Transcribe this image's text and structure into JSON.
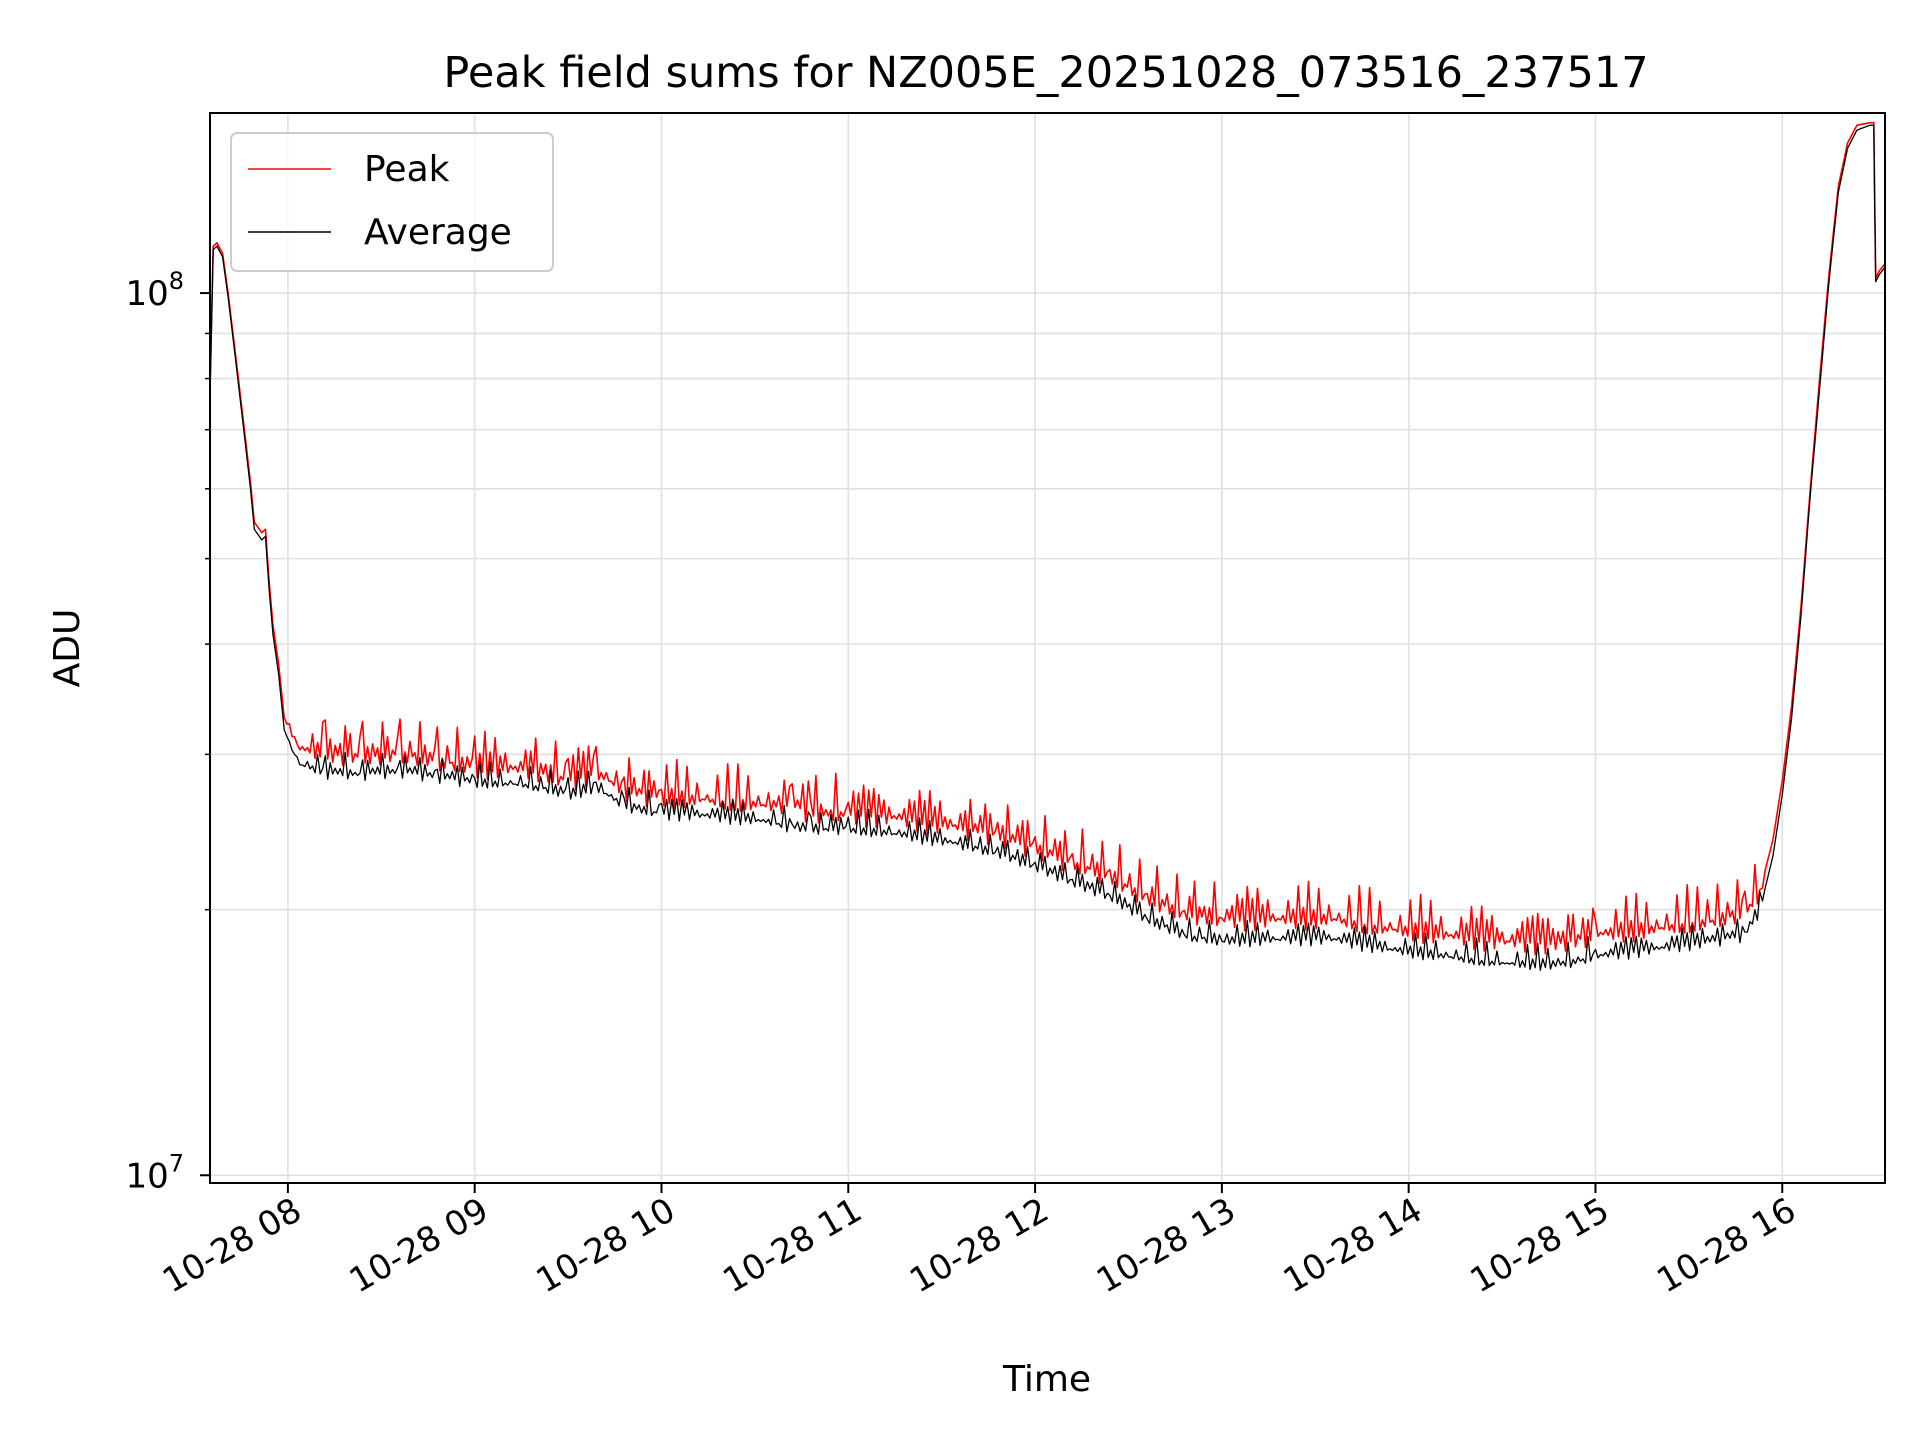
{
  "chart_data": {
    "type": "line",
    "title": "Peak field sums for NZ005E_20251028_073516_237517",
    "xlabel": "Time",
    "ylabel": "ADU",
    "yscale": "log",
    "ylim": [
      9800000,
      160000000
    ],
    "xlim_hours": [
      7.583,
      16.55
    ],
    "x_ticks": [
      {
        "hour": 8,
        "label": "10-28 08"
      },
      {
        "hour": 9,
        "label": "10-28 09"
      },
      {
        "hour": 10,
        "label": "10-28 10"
      },
      {
        "hour": 11,
        "label": "10-28 11"
      },
      {
        "hour": 12,
        "label": "10-28 12"
      },
      {
        "hour": 13,
        "label": "10-28 13"
      },
      {
        "hour": 14,
        "label": "10-28 14"
      },
      {
        "hour": 15,
        "label": "10-28 15"
      },
      {
        "hour": 16,
        "label": "10-28 16"
      }
    ],
    "y_ticks": [
      {
        "value": 10000000,
        "base": "10",
        "exp": "7"
      },
      {
        "value": 100000000,
        "base": "10",
        "exp": "8"
      }
    ],
    "y_minor_ticks": [
      20000000,
      30000000,
      40000000,
      50000000,
      60000000,
      70000000,
      80000000,
      90000000,
      200000000
    ],
    "grid": true,
    "legend_position": "top-left",
    "series": [
      {
        "name": "Peak",
        "color": "#ff0000",
        "points": [
          [
            7.583,
            78000000
          ],
          [
            7.6,
            113000000
          ],
          [
            7.62,
            114000000
          ],
          [
            7.65,
            111000000
          ],
          [
            7.68,
            100000000
          ],
          [
            7.72,
            85000000
          ],
          [
            7.76,
            72000000
          ],
          [
            7.8,
            61000000
          ],
          [
            7.82,
            55000000
          ],
          [
            7.86,
            53500000
          ],
          [
            7.88,
            54000000
          ],
          [
            7.9,
            47000000
          ],
          [
            7.92,
            42000000
          ],
          [
            7.95,
            38000000
          ],
          [
            7.98,
            33000000
          ],
          [
            8.05,
            30500000
          ],
          [
            8.2,
            30000000
          ],
          [
            8.4,
            29800000
          ],
          [
            8.6,
            30000000
          ],
          [
            8.8,
            29500000
          ],
          [
            9.0,
            29000000
          ],
          [
            9.3,
            28800000
          ],
          [
            9.5,
            28000000
          ],
          [
            9.65,
            28600000
          ],
          [
            9.8,
            27300000
          ],
          [
            10.0,
            26800000
          ],
          [
            10.3,
            26600000
          ],
          [
            10.6,
            26200000
          ],
          [
            10.7,
            26300000
          ],
          [
            10.8,
            25800000
          ],
          [
            11.0,
            25700000
          ],
          [
            11.3,
            25300000
          ],
          [
            11.6,
            24800000
          ],
          [
            11.8,
            24300000
          ],
          [
            12.0,
            23500000
          ],
          [
            12.2,
            22600000
          ],
          [
            12.4,
            21800000
          ],
          [
            12.6,
            20600000
          ],
          [
            12.8,
            19800000
          ],
          [
            13.0,
            19500000
          ],
          [
            13.3,
            19500000
          ],
          [
            13.6,
            19500000
          ],
          [
            13.9,
            19000000
          ],
          [
            14.2,
            18700000
          ],
          [
            14.5,
            18400000
          ],
          [
            14.8,
            18300000
          ],
          [
            15.0,
            18700000
          ],
          [
            15.3,
            19000000
          ],
          [
            15.6,
            19400000
          ],
          [
            15.8,
            19800000
          ],
          [
            15.88,
            21000000
          ],
          [
            15.95,
            24000000
          ],
          [
            16.0,
            28000000
          ],
          [
            16.05,
            34000000
          ],
          [
            16.1,
            44000000
          ],
          [
            16.15,
            60000000
          ],
          [
            16.2,
            80000000
          ],
          [
            16.25,
            105000000
          ],
          [
            16.3,
            132000000
          ],
          [
            16.35,
            148000000
          ],
          [
            16.4,
            155000000
          ],
          [
            16.47,
            156000000
          ],
          [
            16.49,
            156000000
          ],
          [
            16.5,
            104000000
          ],
          [
            16.52,
            106000000
          ],
          [
            16.55,
            108000000
          ]
        ]
      },
      {
        "name": "Average",
        "color": "#000000",
        "points": [
          [
            7.583,
            76000000
          ],
          [
            7.6,
            112000000
          ],
          [
            7.62,
            113000000
          ],
          [
            7.65,
            110000000
          ],
          [
            7.68,
            99000000
          ],
          [
            7.72,
            84000000
          ],
          [
            7.76,
            71000000
          ],
          [
            7.8,
            60000000
          ],
          [
            7.82,
            54000000
          ],
          [
            7.86,
            52500000
          ],
          [
            7.88,
            53000000
          ],
          [
            7.9,
            46000000
          ],
          [
            7.92,
            41000000
          ],
          [
            7.95,
            37000000
          ],
          [
            7.98,
            32000000
          ],
          [
            8.05,
            29300000
          ],
          [
            8.2,
            28600000
          ],
          [
            8.4,
            28500000
          ],
          [
            8.6,
            28700000
          ],
          [
            8.8,
            28300000
          ],
          [
            9.0,
            27900000
          ],
          [
            9.3,
            27700000
          ],
          [
            9.5,
            27000000
          ],
          [
            9.65,
            27500000
          ],
          [
            9.8,
            26200000
          ],
          [
            10.0,
            25700000
          ],
          [
            10.3,
            25500000
          ],
          [
            10.6,
            25100000
          ],
          [
            10.7,
            24800000
          ],
          [
            10.8,
            24700000
          ],
          [
            11.0,
            24700000
          ],
          [
            11.3,
            24300000
          ],
          [
            11.6,
            23700000
          ],
          [
            11.8,
            23200000
          ],
          [
            12.0,
            22400000
          ],
          [
            12.2,
            21500000
          ],
          [
            12.4,
            20700000
          ],
          [
            12.6,
            19500000
          ],
          [
            12.8,
            18700000
          ],
          [
            13.0,
            18400000
          ],
          [
            13.3,
            18500000
          ],
          [
            13.6,
            18500000
          ],
          [
            13.9,
            18000000
          ],
          [
            14.2,
            17700000
          ],
          [
            14.5,
            17400000
          ],
          [
            14.8,
            17300000
          ],
          [
            15.0,
            17700000
          ],
          [
            15.3,
            18000000
          ],
          [
            15.6,
            18400000
          ],
          [
            15.8,
            18700000
          ],
          [
            15.88,
            20000000
          ],
          [
            15.95,
            23000000
          ],
          [
            16.0,
            27000000
          ],
          [
            16.05,
            33000000
          ],
          [
            16.1,
            43000000
          ],
          [
            16.15,
            59000000
          ],
          [
            16.2,
            78000000
          ],
          [
            16.25,
            103000000
          ],
          [
            16.3,
            130000000
          ],
          [
            16.35,
            146000000
          ],
          [
            16.4,
            153000000
          ],
          [
            16.47,
            155000000
          ],
          [
            16.49,
            155000000
          ],
          [
            16.5,
            103000000
          ],
          [
            16.52,
            105000000
          ],
          [
            16.55,
            107000000
          ]
        ]
      }
    ]
  }
}
